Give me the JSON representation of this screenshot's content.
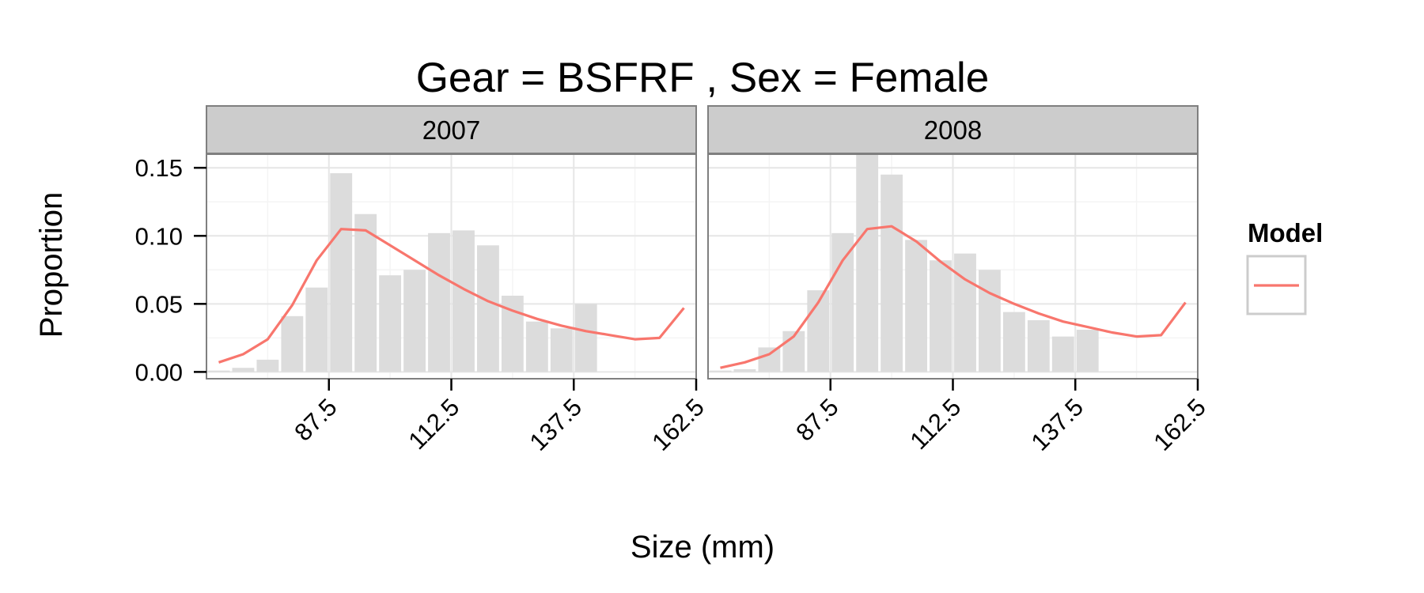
{
  "chart_data": {
    "type": "bar",
    "title": "Gear = BSFRF , Sex = Female",
    "xlabel": "Size (mm)",
    "ylabel": "Proportion",
    "xlim": [
      62.5,
      162.5
    ],
    "ylim": [
      -0.005,
      0.16
    ],
    "xticks": [
      87.5,
      112.5,
      137.5,
      162.5
    ],
    "xtick_labels": [
      "87.5",
      "112.5",
      "137.5",
      "162.5"
    ],
    "yticks": [
      0.0,
      0.05,
      0.1,
      0.15
    ],
    "ytick_labels": [
      "0.00",
      "0.05",
      "0.10",
      "0.15"
    ],
    "grid": true,
    "legend": {
      "title": "Model",
      "placement": "right"
    },
    "colors": {
      "bar": "#dcdcdc",
      "line": "#f8766d",
      "strip": "#cccccc",
      "panel_border": "#7f7f7f",
      "grid_major": "#e6e6e6",
      "grid_minor": "#f4f4f4"
    },
    "bin_centers": [
      65,
      70,
      75,
      80,
      85,
      90,
      95,
      100,
      105,
      110,
      115,
      120,
      125,
      130,
      135,
      140,
      145,
      150,
      155,
      160
    ],
    "panels": [
      {
        "label": "2007",
        "observed": [
          0.001,
          0.003,
          0.009,
          0.041,
          0.062,
          0.146,
          0.116,
          0.071,
          0.075,
          0.102,
          0.104,
          0.093,
          0.056,
          0.037,
          0.032,
          0.05,
          0,
          0,
          0,
          0
        ],
        "model": [
          0.007,
          0.013,
          0.024,
          0.049,
          0.082,
          0.105,
          0.104,
          0.093,
          0.082,
          0.071,
          0.061,
          0.052,
          0.045,
          0.039,
          0.034,
          0.03,
          0.027,
          0.024,
          0.025,
          0.047
        ]
      },
      {
        "label": "2008",
        "observed": [
          0.001,
          0.002,
          0.018,
          0.03,
          0.06,
          0.102,
          0.16,
          0.145,
          0.097,
          0.082,
          0.087,
          0.075,
          0.044,
          0.038,
          0.026,
          0.031,
          0,
          0,
          0,
          0
        ],
        "model": [
          0.003,
          0.007,
          0.013,
          0.026,
          0.051,
          0.082,
          0.105,
          0.107,
          0.096,
          0.081,
          0.068,
          0.058,
          0.05,
          0.043,
          0.037,
          0.033,
          0.029,
          0.026,
          0.027,
          0.051
        ]
      }
    ]
  }
}
